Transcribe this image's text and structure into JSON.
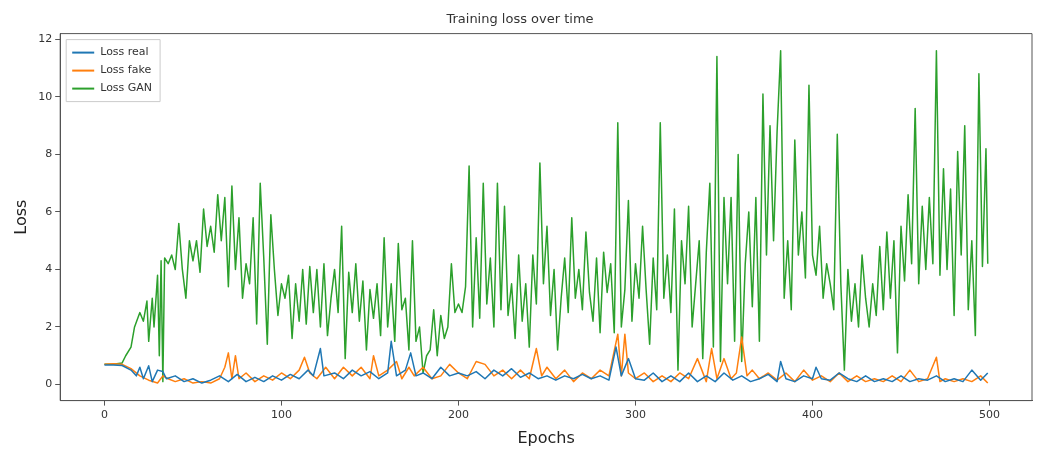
{
  "chart_data": {
    "type": "line",
    "title": "Training loss over time",
    "xlabel": "Epochs",
    "ylabel": "Loss",
    "xlim": [
      -25,
      524
    ],
    "xticks": [
      0,
      100,
      200,
      300,
      400,
      500
    ],
    "ylim": [
      -0.56,
      12.2
    ],
    "yticks": [
      0,
      2,
      4,
      6,
      8,
      10,
      12
    ],
    "grid": false,
    "legend": "top left",
    "marker": "none",
    "line_style": "solid",
    "series": [
      {
        "name": "Loss real",
        "color": "#1f77b4",
        "x": [
          0,
          5,
          10,
          15,
          18,
          20,
          22,
          25,
          27,
          30,
          33,
          35,
          40,
          45,
          50,
          55,
          60,
          65,
          70,
          75,
          80,
          85,
          90,
          95,
          100,
          105,
          110,
          115,
          118,
          122,
          124,
          130,
          135,
          140,
          145,
          150,
          155,
          160,
          162,
          165,
          170,
          173,
          176,
          180,
          185,
          190,
          195,
          200,
          205,
          210,
          215,
          220,
          225,
          230,
          235,
          240,
          245,
          250,
          255,
          260,
          265,
          270,
          275,
          280,
          285,
          289,
          292,
          296,
          300,
          305,
          310,
          315,
          320,
          325,
          330,
          335,
          340,
          345,
          350,
          355,
          360,
          365,
          370,
          375,
          380,
          382,
          385,
          390,
          395,
          400,
          402,
          405,
          410,
          415,
          420,
          425,
          430,
          435,
          440,
          445,
          450,
          455,
          460,
          465,
          470,
          475,
          480,
          485,
          490,
          495,
          499
        ],
        "values": [
          0.68,
          0.68,
          0.66,
          0.5,
          0.3,
          0.6,
          0.2,
          0.65,
          0.1,
          0.5,
          0.45,
          0.2,
          0.3,
          0.1,
          0.2,
          0.05,
          0.15,
          0.3,
          0.1,
          0.35,
          0.1,
          0.25,
          0.1,
          0.3,
          0.15,
          0.35,
          0.2,
          0.5,
          0.3,
          1.25,
          0.3,
          0.4,
          0.2,
          0.5,
          0.3,
          0.45,
          0.2,
          0.4,
          1.5,
          0.3,
          0.5,
          1.1,
          0.3,
          0.4,
          0.2,
          0.6,
          0.3,
          0.4,
          0.3,
          0.45,
          0.2,
          0.5,
          0.3,
          0.55,
          0.25,
          0.4,
          0.2,
          0.3,
          0.15,
          0.3,
          0.2,
          0.35,
          0.2,
          0.3,
          0.15,
          1.3,
          0.3,
          0.9,
          0.2,
          0.15,
          0.4,
          0.1,
          0.3,
          0.1,
          0.4,
          0.1,
          0.3,
          0.1,
          0.4,
          0.15,
          0.3,
          0.1,
          0.2,
          0.35,
          0.1,
          0.8,
          0.2,
          0.1,
          0.3,
          0.2,
          0.6,
          0.2,
          0.15,
          0.4,
          0.2,
          0.1,
          0.3,
          0.1,
          0.2,
          0.1,
          0.3,
          0.1,
          0.2,
          0.15,
          0.3,
          0.1,
          0.2,
          0.1,
          0.5,
          0.15,
          0.4
        ]
      },
      {
        "name": "Loss fake",
        "color": "#ff7f0e",
        "x": [
          0,
          5,
          10,
          15,
          20,
          25,
          30,
          33,
          36,
          40,
          45,
          50,
          55,
          60,
          65,
          68,
          70,
          72,
          74,
          76,
          80,
          85,
          90,
          95,
          100,
          105,
          110,
          113,
          116,
          120,
          125,
          130,
          135,
          140,
          145,
          150,
          152,
          155,
          160,
          165,
          168,
          172,
          175,
          180,
          185,
          190,
          195,
          200,
          205,
          210,
          215,
          220,
          225,
          230,
          235,
          240,
          244,
          247,
          250,
          255,
          260,
          265,
          270,
          275,
          280,
          285,
          290,
          292,
          294,
          296,
          300,
          305,
          310,
          315,
          320,
          325,
          330,
          335,
          340,
          343,
          346,
          350,
          354,
          357,
          360,
          363,
          366,
          370,
          375,
          380,
          385,
          390,
          395,
          400,
          405,
          410,
          415,
          420,
          425,
          430,
          435,
          440,
          445,
          450,
          455,
          460,
          465,
          470,
          472,
          475,
          480,
          485,
          490,
          495,
          499
        ],
        "values": [
          0.7,
          0.72,
          0.7,
          0.55,
          0.3,
          0.15,
          0.05,
          0.3,
          0.2,
          0.1,
          0.2,
          0.05,
          0.1,
          0.05,
          0.2,
          0.6,
          1.1,
          0.2,
          1.0,
          0.2,
          0.4,
          0.1,
          0.3,
          0.15,
          0.4,
          0.2,
          0.5,
          0.95,
          0.4,
          0.2,
          0.6,
          0.2,
          0.6,
          0.3,
          0.6,
          0.2,
          1.0,
          0.3,
          0.5,
          0.8,
          0.2,
          0.6,
          0.3,
          0.6,
          0.2,
          0.3,
          0.7,
          0.4,
          0.2,
          0.8,
          0.7,
          0.3,
          0.5,
          0.2,
          0.5,
          0.2,
          1.25,
          0.3,
          0.6,
          0.2,
          0.5,
          0.1,
          0.4,
          0.2,
          0.5,
          0.3,
          1.75,
          0.3,
          1.75,
          0.4,
          0.2,
          0.4,
          0.1,
          0.3,
          0.1,
          0.4,
          0.2,
          0.9,
          0.1,
          1.25,
          0.2,
          0.9,
          0.2,
          0.4,
          1.65,
          0.3,
          0.5,
          0.2,
          0.4,
          0.15,
          0.4,
          0.1,
          0.5,
          0.15,
          0.3,
          0.1,
          0.4,
          0.1,
          0.3,
          0.1,
          0.2,
          0.1,
          0.3,
          0.1,
          0.5,
          0.1,
          0.2,
          0.95,
          0.1,
          0.2,
          0.1,
          0.2,
          0.1,
          0.3,
          0.05
        ]
      },
      {
        "name": "Loss GAN",
        "color": "#2ca02c",
        "x": [
          0,
          5,
          10,
          12,
          15,
          17,
          20,
          22,
          24,
          25,
          27,
          28,
          30,
          31,
          32,
          33,
          34,
          36,
          38,
          40,
          42,
          44,
          46,
          48,
          50,
          52,
          54,
          56,
          58,
          60,
          62,
          64,
          66,
          68,
          70,
          72,
          74,
          76,
          78,
          80,
          82,
          84,
          86,
          88,
          90,
          92,
          94,
          96,
          98,
          100,
          102,
          104,
          106,
          108,
          110,
          112,
          114,
          116,
          118,
          120,
          122,
          124,
          126,
          128,
          130,
          132,
          134,
          136,
          138,
          140,
          142,
          144,
          146,
          148,
          150,
          152,
          154,
          156,
          158,
          160,
          162,
          164,
          166,
          168,
          170,
          172,
          174,
          176,
          178,
          180,
          182,
          184,
          186,
          188,
          190,
          192,
          194,
          196,
          198,
          200,
          202,
          204,
          206,
          208,
          210,
          212,
          214,
          216,
          218,
          220,
          222,
          224,
          226,
          228,
          230,
          232,
          234,
          236,
          238,
          240,
          242,
          244,
          246,
          248,
          250,
          252,
          254,
          256,
          258,
          260,
          262,
          264,
          266,
          268,
          270,
          272,
          274,
          276,
          278,
          280,
          282,
          284,
          286,
          288,
          290,
          292,
          294,
          296,
          298,
          300,
          302,
          304,
          306,
          308,
          310,
          312,
          314,
          316,
          318,
          320,
          322,
          324,
          326,
          328,
          330,
          332,
          334,
          336,
          338,
          340,
          342,
          344,
          346,
          348,
          350,
          352,
          354,
          356,
          358,
          360,
          362,
          364,
          366,
          368,
          370,
          372,
          374,
          376,
          378,
          380,
          382,
          384,
          386,
          388,
          390,
          392,
          394,
          396,
          398,
          400,
          402,
          404,
          406,
          408,
          410,
          412,
          414,
          416,
          418,
          420,
          422,
          424,
          426,
          428,
          430,
          432,
          434,
          436,
          438,
          440,
          442,
          444,
          446,
          448,
          450,
          452,
          454,
          456,
          458,
          460,
          462,
          464,
          466,
          468,
          470,
          472,
          474,
          476,
          478,
          480,
          482,
          484,
          486,
          488,
          490,
          492,
          494,
          496,
          498,
          499
        ],
        "values": [
          0.7,
          0.7,
          0.75,
          1.0,
          1.3,
          2.0,
          2.5,
          2.2,
          2.9,
          1.5,
          3.0,
          2.0,
          3.8,
          1.0,
          4.3,
          0.1,
          4.4,
          4.2,
          4.5,
          4.0,
          5.6,
          4.0,
          3.0,
          5.0,
          4.3,
          5.0,
          3.9,
          6.1,
          4.8,
          5.5,
          4.6,
          6.6,
          5.0,
          6.5,
          3.4,
          6.9,
          4.0,
          5.8,
          3.0,
          4.2,
          3.5,
          5.8,
          2.1,
          7.0,
          4.4,
          1.4,
          5.9,
          4.0,
          2.4,
          3.5,
          3.0,
          3.8,
          1.6,
          3.5,
          2.2,
          4.0,
          2.1,
          4.1,
          2.5,
          4.0,
          2.0,
          4.2,
          1.7,
          3.0,
          4.0,
          2.5,
          5.5,
          0.9,
          3.9,
          2.5,
          4.2,
          2.2,
          3.6,
          1.2,
          3.3,
          2.3,
          3.5,
          1.7,
          5.1,
          2.0,
          3.5,
          1.5,
          4.9,
          2.6,
          3.0,
          1.2,
          5.0,
          1.5,
          2.0,
          0.4,
          1.0,
          1.2,
          2.6,
          1.0,
          2.4,
          1.6,
          2.0,
          4.2,
          2.5,
          2.8,
          2.5,
          3.4,
          7.6,
          2.0,
          5.1,
          2.3,
          7.0,
          2.8,
          4.4,
          2.0,
          7.0,
          2.6,
          6.2,
          2.4,
          3.5,
          1.6,
          4.5,
          2.2,
          3.5,
          1.3,
          4.5,
          2.8,
          7.7,
          3.5,
          5.5,
          2.4,
          4.0,
          1.2,
          3.0,
          4.4,
          2.5,
          5.8,
          3.0,
          4.0,
          2.6,
          5.3,
          3.2,
          2.2,
          4.4,
          1.8,
          4.6,
          3.2,
          4.2,
          1.8,
          9.1,
          2.0,
          3.3,
          6.4,
          2.2,
          4.2,
          3.0,
          5.5,
          3.3,
          1.4,
          4.4,
          2.6,
          9.1,
          3.0,
          4.5,
          2.5,
          6.1,
          0.5,
          5.0,
          3.5,
          6.2,
          2.0,
          3.5,
          5.0,
          0.9,
          4.6,
          7.0,
          1.3,
          11.4,
          0.8,
          6.5,
          3.5,
          6.5,
          1.5,
          8.0,
          0.8,
          4.2,
          6.0,
          2.7,
          6.5,
          1.5,
          10.1,
          4.5,
          9.0,
          5.0,
          8.8,
          11.6,
          3.0,
          5.0,
          2.6,
          8.5,
          4.5,
          6.0,
          3.7,
          10.4,
          4.5,
          3.8,
          5.5,
          3.0,
          4.2,
          3.5,
          2.6,
          8.7,
          3.5,
          0.5,
          4.0,
          2.2,
          3.5,
          2.0,
          4.5,
          3.0,
          2.0,
          3.5,
          2.4,
          4.8,
          2.6,
          5.3,
          3.0,
          5.0,
          1.1,
          5.5,
          3.6,
          6.6,
          4.2,
          9.6,
          3.5,
          6.2,
          4.0,
          6.5,
          4.2,
          11.6,
          3.8,
          7.5,
          4.0,
          6.8,
          2.4,
          8.1,
          4.5,
          9.0,
          2.6,
          5.0,
          1.7,
          10.8,
          4.1,
          8.2,
          4.2
        ]
      }
    ]
  }
}
